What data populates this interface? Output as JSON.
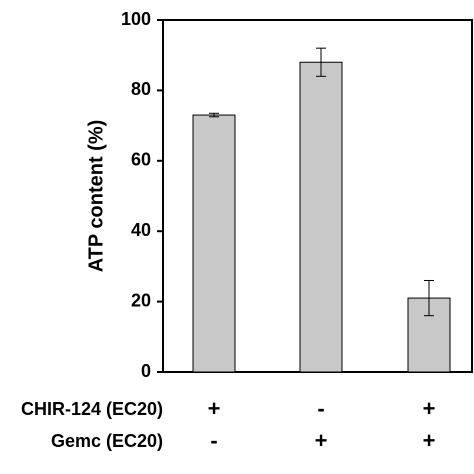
{
  "chart_data": {
    "type": "bar",
    "y_label": "ATP content (%)",
    "values": [
      73,
      88,
      21
    ],
    "errors": [
      0.5,
      4,
      5
    ],
    "color": "#c8c8c8",
    "ylim": [
      0,
      100
    ],
    "yticks": [
      0,
      20,
      40,
      60,
      80,
      100
    ],
    "conditions": [
      {
        "name": "CHIR-124 (EC20)",
        "signs": [
          "+",
          "-",
          "+"
        ]
      },
      {
        "name": "Gemc (EC20)",
        "signs": [
          "-",
          "+",
          "+"
        ]
      }
    ]
  }
}
